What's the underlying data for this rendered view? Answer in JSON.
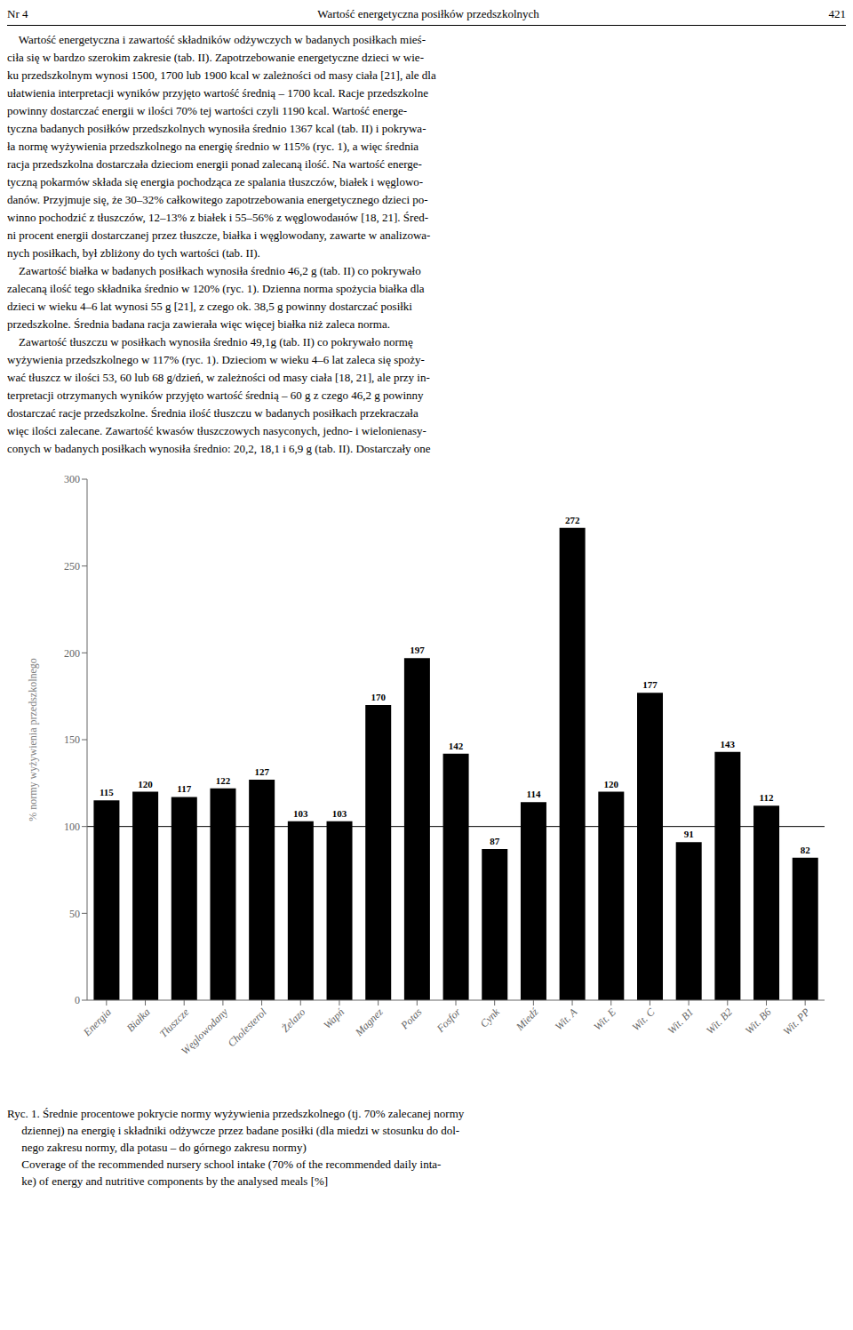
{
  "chart_data": {
    "type": "bar",
    "categories": [
      "Energia",
      "Białka",
      "Tłuszcze",
      "Węglowodany",
      "Cholesterol",
      "Żelazo",
      "Wapń",
      "Magnez",
      "Potas",
      "Fosfor",
      "Cynk",
      "Miedź",
      "Wit. A",
      "Wit. E",
      "Wit. C",
      "Wit. B1",
      "Wit. B2",
      "Wit. B6",
      "Wit. PP"
    ],
    "values": [
      115,
      120,
      117,
      122,
      127,
      103,
      103,
      170,
      197,
      142,
      87,
      114,
      272,
      120,
      177,
      91,
      143,
      112,
      82
    ],
    "color": "#000000",
    "ylabel": "% normy wyżywienia przedszkolnego",
    "ylim": [
      0,
      300
    ],
    "yticks": [
      0,
      50,
      100,
      150,
      200,
      250,
      300
    ],
    "reference_line": 100,
    "data_labels": true,
    "grid": false
  },
  "header": [
    "Nr 4",
    "Wartość energetyczna posiłków przedszkolnych",
    "421"
  ],
  "text_lines": [
    "    Wartość energetyczna i zawartość składników odżywczych w badanych posiłkach mieś-",
    "ciła się w bardzo szerokim zakresie (tab. II). Zapotrzebowanie energetyczne dzieci w wie-",
    "ku przedszkolnym wynosi 1500, 1700 lub 1900 kcal w zależności od masy ciała [21], ale dla",
    "ułatwienia interpretacji wyników przyjęto wartość średnią – 1700 kcal. Racje przedszkolne",
    "powinny dostarczać energii w ilości 70% tej wartości czyli 1190 kcal. Wartość energe-",
    "tyczna badanych posiłków przedszkolnych wynosiła średnio 1367 kcal (tab. II) i pokrywa-",
    "ła normę wyżywienia przedszkolnego na energię średnio w 115% (ryc. 1), a więc średnia",
    "racja przedszkolna dostarczała dzieciom energii ponad zalecaną ilość. Na wartość energe-",
    "tyczną pokarmów składa się energia pochodząca ze spalania tłuszczów, białek i węglowo-",
    "danów. Przyjmuje się, że 30–32% całkowitego zapotrzebowania energetycznego dzieci po-",
    "winno pochodzić z tłuszczów, 12–13% z białek i 55–56% z węglowodанów [18, 21]. Śred-",
    "ni procent energii dostarczanej przez tłuszcze, białka i węglowodany, zawarte w analizowa-",
    "nych posiłkach, był zbliżony do tych wartości (tab. II).",
    "    Zawartość białka w badanych posiłkach wynosiła średnio 46,2 g (tab. II) co pokrywało",
    "zalecaną ilość tego składnika średnio w 120% (ryc. 1). Dzienna norma spożycia białka dla",
    "dzieci w wieku 4–6 lat wynosi 55 g [21], z czego ok. 38,5 g powinny dostarczać posiłki",
    "przedszkolne. Średnia badana racja zawierała więc więcej białka niż zaleca norma.",
    "    Zawartość tłuszczu w posiłkach wynosiła średnio 49,1g (tab. II) co pokrywało normę",
    "wyżywienia przedszkolnego w 117% (ryc. 1). Dzieciom w wieku 4–6 lat zaleca się spoży-",
    "wać tłuszcz w ilości 53, 60 lub 68 g/dzień, w zależności od masy ciała [18, 21], ale przy in-",
    "terpretacji otrzymanych wyników przyjęto wartość średnią – 60 g z czego 46,2 g powinny",
    "dostarczać racje przedszkolne. Średnia ilość tłuszczu w badanych posiłkach przekraczała",
    "więc ilości zalecane. Zawartość kwasów tłuszczowych nasyconych, jedno- i wielonienasy-",
    "conych w badanych posiłkach wynosiła średnio: 20,2, 18,1 i 6,9 g (tab. II). Dostarczały one"
  ],
  "caption_lines": [
    "Ryc. 1. Średnie procentowe pokrycie normy wyżywienia przedszkolnego (tj. 70% zalecanej normy",
    "     dziennej) na energię i składniki odżywcze przez badane posiłki (dla miedzi w stosunku do dol-",
    "     nego zakresu normy, dla potasu – do górnego zakresu normy)",
    "     Coverage of the recommended nursery school intake (70% of the recommended daily inta-",
    "     ke) of energy and nutritive components by the analysed meals [%]"
  ]
}
